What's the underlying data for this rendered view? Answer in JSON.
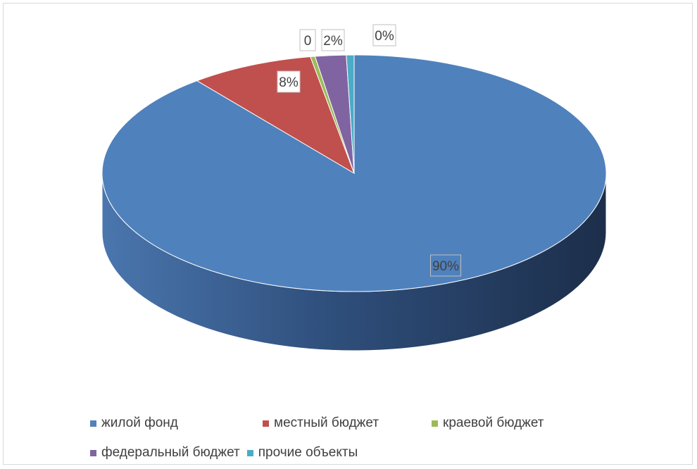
{
  "chart_data": {
    "type": "pie",
    "categories": [
      "жилой фонд",
      "местный бюджет",
      "краевой бюджет",
      "федеральный бюджет",
      "прочие объекты"
    ],
    "values": [
      90,
      8,
      0.3,
      2,
      0.5
    ],
    "data_labels": [
      "90%",
      "8%",
      "0",
      "2%",
      "0%"
    ],
    "colors": [
      "#4f81bd",
      "#c0504d",
      "#9bbb59",
      "#8064a2",
      "#4bacc6"
    ],
    "legend_position": "bottom",
    "style": "3d-pie"
  },
  "legend": {
    "items": [
      {
        "label": "жилой фонд",
        "color": "#4f81bd"
      },
      {
        "label": "местный бюджет",
        "color": "#c0504d"
      },
      {
        "label": "краевой бюджет",
        "color": "#9bbb59"
      },
      {
        "label": "федеральный бюджет",
        "color": "#8064a2"
      },
      {
        "label": "прочие объекты",
        "color": "#4bacc6"
      }
    ]
  }
}
